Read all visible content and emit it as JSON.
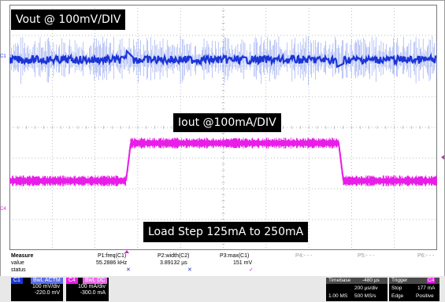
{
  "channels": {
    "vout_label": "Vout @ 100mV/DIV",
    "iout_label": "Iout @100mA/DIV",
    "step_label": "Load Step 125mA to 250mA",
    "ch1_marker": "C1",
    "ch4_marker": "C4"
  },
  "measure": {
    "row_labels": [
      "Measure",
      "value",
      "status"
    ],
    "p1": {
      "name": "P1:freq(C1)",
      "value": "55.2886 kHz",
      "status": "✕"
    },
    "p2": {
      "name": "P2:width(C2)",
      "value": "3.89132 µs",
      "status": "✕"
    },
    "p3": {
      "name": "P3:max(C1)",
      "value": "151 mV",
      "status": "✓"
    },
    "p4": {
      "name": "P4:- - -"
    },
    "p5": {
      "name": "P5:- - -"
    },
    "p6": {
      "name": "P6:- - -"
    }
  },
  "ch1_box": {
    "tag": "C1",
    "mode": "BwL ACTM",
    "scale": "100 mV/div",
    "offset": "-220.0 mV"
  },
  "ch4_box": {
    "tag": "C4",
    "mode": "BwL DC",
    "scale": "100 mA/div",
    "offset": "-300.0 mA"
  },
  "timebase": {
    "title": "Timebase",
    "delay": "-480 µs",
    "per_div": "200 µs/div",
    "samples": "1.00 MS",
    "rate": "500 MS/s"
  },
  "trigger": {
    "title": "Trigger",
    "channel": "C4",
    "mode": "Stop",
    "level": "177 mA",
    "type": "Edge",
    "slope": "Positive"
  },
  "colors": {
    "ch1": "#1a34d6",
    "ch1_light": "#8ea0f0",
    "ch4": "#e81ee8",
    "grid": "#9aa2a8"
  }
}
